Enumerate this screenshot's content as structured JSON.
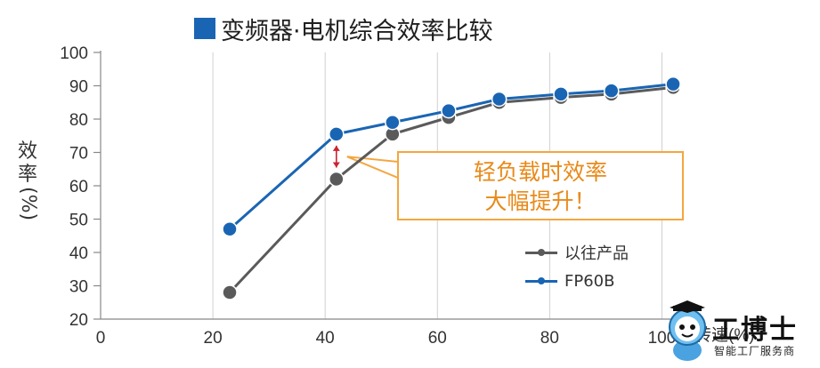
{
  "chart_data": {
    "type": "line",
    "title": "变频器·电机综合效率比较",
    "ylabel_chars": [
      "效",
      "率"
    ],
    "ylabel_unit": "(%)",
    "xlabel": "转速(%)",
    "xlim": [
      0,
      105
    ],
    "ylim": [
      20,
      100
    ],
    "x_ticks": [
      0,
      20,
      40,
      60,
      80,
      100
    ],
    "y_ticks": [
      20,
      30,
      40,
      50,
      60,
      70,
      80,
      90,
      100
    ],
    "grid": true,
    "legend_position": "right",
    "series": [
      {
        "name": "以往产品",
        "color": "#5a5a5a",
        "points": [
          [
            23,
            28
          ],
          [
            42,
            62
          ],
          [
            52,
            75.5
          ],
          [
            62,
            80.5
          ],
          [
            71,
            85
          ],
          [
            82,
            86.5
          ],
          [
            91,
            87.5
          ],
          [
            102,
            89.5
          ]
        ]
      },
      {
        "name": "FP60B",
        "color": "#1a65b3",
        "points": [
          [
            23,
            47
          ],
          [
            42,
            75.5
          ],
          [
            52,
            79
          ],
          [
            62,
            82.5
          ],
          [
            71,
            86
          ],
          [
            82,
            87.5
          ],
          [
            91,
            88.5
          ],
          [
            102,
            90.5
          ]
        ]
      }
    ],
    "annotation": {
      "lines": [
        "轻负载时效率",
        "大幅提升！"
      ],
      "x": 42,
      "y_from": 62,
      "y_to": 75.5,
      "box_color": "#f4a640",
      "text_color": "#e88a1a",
      "arrow_color": "#cc2233"
    }
  },
  "title_marker_color": "#1a65b3",
  "watermark": {
    "brand": "工博士",
    "tagline": "智能工厂服务商",
    "mascot": "robot-mascot-icon"
  }
}
